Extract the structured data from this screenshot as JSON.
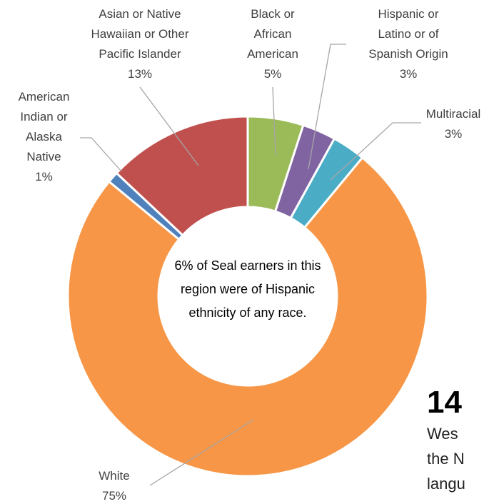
{
  "chart_data": {
    "type": "donut",
    "categories": [
      "Black or African American",
      "Hispanic or Latino or of Spanish Origin",
      "Multiracial",
      "White",
      "American Indian or Alaska Native",
      "Asian or Native Hawaiian or Other Pacific Islander"
    ],
    "values": [
      5,
      3,
      3,
      75,
      1,
      13
    ],
    "value_labels": [
      "5%",
      "3%",
      "3%",
      "75%",
      "1%",
      "13%"
    ],
    "colors": [
      "#9bbb59",
      "#8064a2",
      "#4bacc6",
      "#f79646",
      "#4f81bd",
      "#c0504d"
    ],
    "annotation": "6% of Seal earners in this region were of Hispanic ethnicity of any race."
  },
  "side_text": {
    "heading": "14",
    "lines": [
      "Wes",
      "the N",
      "langu"
    ]
  }
}
